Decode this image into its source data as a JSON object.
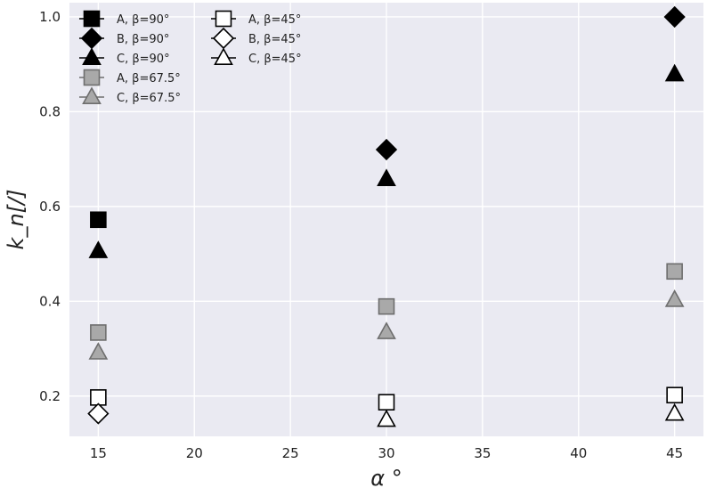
{
  "chart_data": {
    "type": "scatter",
    "title": "",
    "xlabel": "α °",
    "ylabel": "k_n[/]",
    "xlim": [
      13.5,
      46.5
    ],
    "ylim": [
      0.115,
      1.03
    ],
    "xticks": [
      "15",
      "20",
      "25",
      "30",
      "35",
      "40",
      "45"
    ],
    "yticks": [
      "0.2",
      "0.4",
      "0.6",
      "0.8",
      "1.0"
    ],
    "grid": true,
    "legend": {
      "placement": "top-left",
      "columns": 2
    },
    "series": [
      {
        "name": "A, β=90°",
        "marker": "square",
        "fill": "#000000",
        "stroke": "#000000",
        "points": [
          [
            15,
            0.572
          ]
        ]
      },
      {
        "name": "B, β=90°",
        "marker": "diamond",
        "fill": "#000000",
        "stroke": "#000000",
        "points": [
          [
            30,
            0.72
          ],
          [
            45,
            1.0
          ]
        ]
      },
      {
        "name": "C, β=90°",
        "marker": "triangle",
        "fill": "#000000",
        "stroke": "#000000",
        "points": [
          [
            15,
            0.506
          ],
          [
            30,
            0.658
          ],
          [
            45,
            0.879
          ]
        ]
      },
      {
        "name": "A, β=67.5°",
        "marker": "square",
        "fill": "#a9a9a9",
        "stroke": "#6e6e6e",
        "points": [
          [
            15,
            0.334
          ],
          [
            30,
            0.389
          ],
          [
            45,
            0.463
          ]
        ]
      },
      {
        "name": "C, β=67.5°",
        "marker": "triangle",
        "fill": "#a9a9a9",
        "stroke": "#6e6e6e",
        "points": [
          [
            15,
            0.292
          ],
          [
            30,
            0.335
          ],
          [
            45,
            0.403
          ]
        ]
      },
      {
        "name": "A, β=45°",
        "marker": "square",
        "fill": "#ffffff",
        "stroke": "#000000",
        "points": [
          [
            15,
            0.197
          ],
          [
            30,
            0.187
          ],
          [
            45,
            0.202
          ]
        ]
      },
      {
        "name": "B, β=45°",
        "marker": "diamond",
        "fill": "#ffffff",
        "stroke": "#000000",
        "points": [
          [
            15,
            0.163
          ]
        ]
      },
      {
        "name": "C, β=45°",
        "marker": "triangle",
        "fill": "#ffffff",
        "stroke": "#000000",
        "points": [
          [
            30,
            0.15
          ],
          [
            45,
            0.163
          ]
        ]
      }
    ],
    "colors": {
      "plot_background": "#eaeaf2",
      "grid": "#ffffff"
    }
  }
}
